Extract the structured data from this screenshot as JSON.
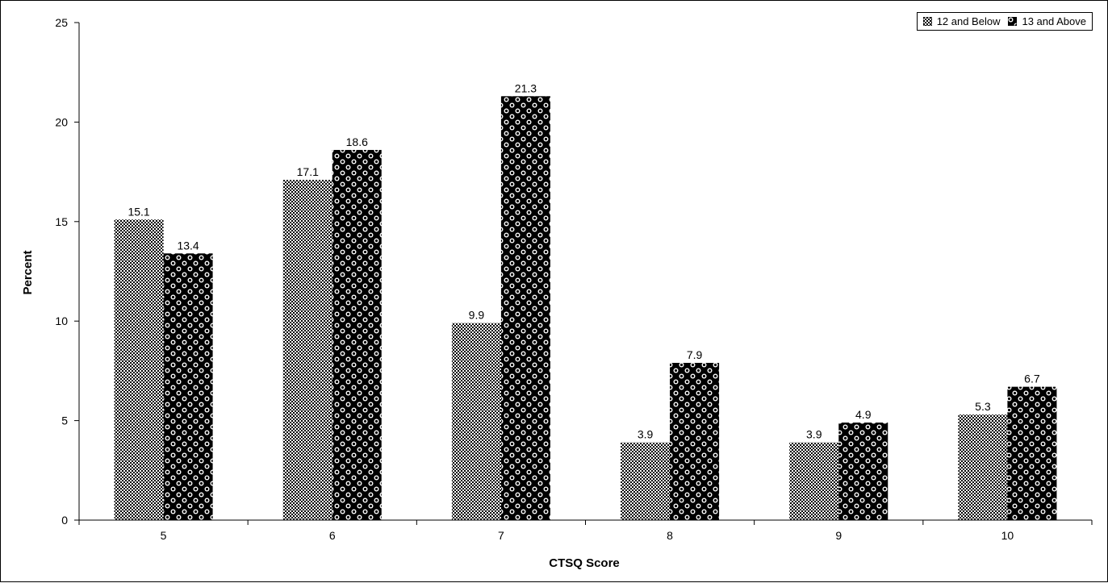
{
  "chart_data": {
    "type": "bar",
    "categories": [
      "5",
      "6",
      "7",
      "8",
      "9",
      "10"
    ],
    "series": [
      {
        "name": "12 and Below",
        "values": [
          15.1,
          17.1,
          9.9,
          3.9,
          3.9,
          5.3
        ],
        "labels": [
          "15.1",
          "17.1",
          "9.9",
          "3.9",
          "3.9",
          "5.3"
        ]
      },
      {
        "name": "13 and Above",
        "values": [
          13.4,
          18.6,
          21.3,
          7.9,
          4.9,
          6.7
        ],
        "labels": [
          "13.4",
          "18.6",
          "21.3",
          "7.9",
          "4.9",
          "6.7"
        ]
      }
    ],
    "xlabel": "CTSQ Score",
    "ylabel": "Percent",
    "ylim": [
      0,
      25
    ],
    "yticks": [
      "0",
      "5",
      "10",
      "15",
      "20",
      "25"
    ],
    "grid": false,
    "legend_position": "top-right",
    "colors": {
      "bar_fill": "#000000",
      "background": "#ffffff"
    }
  }
}
